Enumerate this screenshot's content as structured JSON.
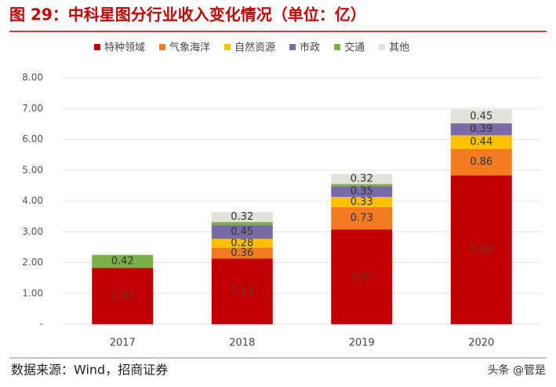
{
  "chart_data": {
    "type": "stacked_bar",
    "title": "图 29：中科星图分行业收入变化情况（单位：亿）",
    "source": "数据来源：Wind，招商证券",
    "watermark": "头条 @管是",
    "categories": [
      "2017",
      "2018",
      "2019",
      "2020"
    ],
    "series": [
      {
        "name": "特种领域",
        "color": "#c00000",
        "values": [
          1.83,
          2.13,
          3.07,
          4.83
        ],
        "value_labels": [
          "1.83",
          "2.13",
          "3.07",
          "4.83"
        ]
      },
      {
        "name": "气象海洋",
        "color": "#f47b20",
        "values": [
          0,
          0.36,
          0.73,
          0.86
        ],
        "value_labels": [
          null,
          "0.36",
          "0.73",
          "0.86"
        ]
      },
      {
        "name": "自然资源",
        "color": "#ffc000",
        "values": [
          0,
          0.28,
          0.33,
          0.44
        ],
        "value_labels": [
          null,
          "0.28",
          "0.33",
          "0.44"
        ]
      },
      {
        "name": "市政",
        "color": "#7a6aa8",
        "values": [
          0,
          0.45,
          0.35,
          0.39
        ],
        "value_labels": [
          null,
          "0.45",
          "0.35",
          "0.39"
        ]
      },
      {
        "name": "交通",
        "color": "#7cb04a",
        "values": [
          0.42,
          0.1,
          0.07,
          0
        ],
        "value_labels": [
          "0.42",
          null,
          null,
          null
        ]
      },
      {
        "name": "其他",
        "color": "#e2e2da",
        "values": [
          0,
          0.32,
          0.32,
          0.45
        ],
        "value_labels": [
          null,
          "0.32",
          "0.32",
          "0.45"
        ]
      }
    ],
    "ylim": [
      0,
      8
    ],
    "yticks": [
      {
        "value": 0,
        "label": "-"
      },
      {
        "value": 1,
        "label": "1.00"
      },
      {
        "value": 2,
        "label": "2.00"
      },
      {
        "value": 3,
        "label": "3.00"
      },
      {
        "value": 4,
        "label": "4.00"
      },
      {
        "value": 5,
        "label": "5.00"
      },
      {
        "value": 6,
        "label": "6.00"
      },
      {
        "value": 7,
        "label": "7.00"
      },
      {
        "value": 8,
        "label": "8.00"
      }
    ],
    "grid": true
  }
}
